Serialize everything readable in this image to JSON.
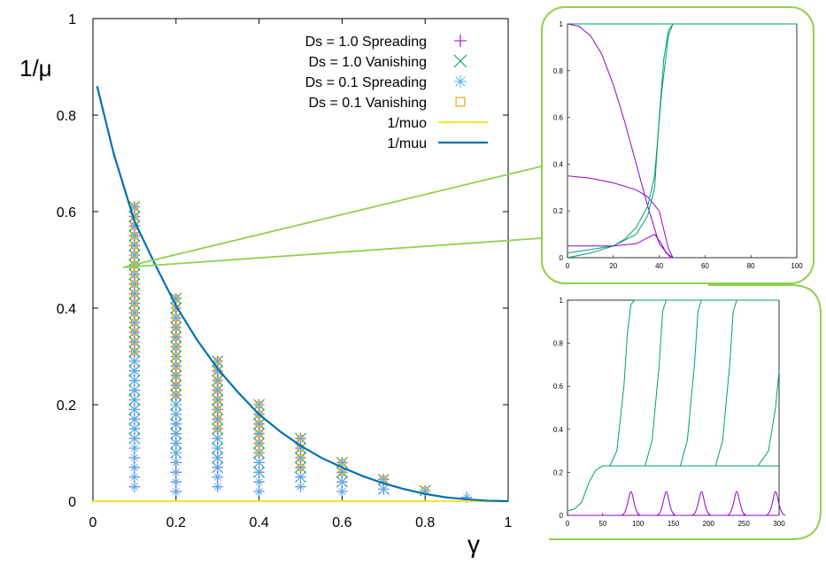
{
  "main": {
    "ylabel": "1/μ",
    "xlabel": "γ",
    "x_ticks": [
      "0",
      "0.2",
      "0.4",
      "0.6",
      "0.8",
      "1"
    ],
    "y_ticks": [
      "0",
      "0.2",
      "0.4",
      "0.6",
      "0.8",
      "1"
    ],
    "legend": [
      {
        "label": "Ds = 1.0 Spreading",
        "marker": "plus",
        "color": "#9400d3"
      },
      {
        "label": "Ds = 1.0 Vanishing",
        "marker": "cross",
        "color": "#009e73"
      },
      {
        "label": "Ds = 0.1 Spreading",
        "marker": "asterisk",
        "color": "#56b4e9"
      },
      {
        "label": "Ds = 0.1 Vanishing",
        "marker": "square",
        "color": "#e69f00"
      },
      {
        "label": "1/muo",
        "marker": "line",
        "color": "#f0e442"
      },
      {
        "label": "1/muu",
        "marker": "line",
        "color": "#0072b2"
      }
    ]
  },
  "inset_top": {
    "x_ticks": [
      "0",
      "20",
      "40",
      "60",
      "80",
      "100"
    ],
    "y_ticks": [
      "0",
      "0.2",
      "0.4",
      "0.6",
      "0.8",
      "1"
    ]
  },
  "inset_bottom": {
    "x_ticks": [
      "0",
      "50",
      "100",
      "150",
      "200",
      "250",
      "300"
    ],
    "y_ticks": [
      "0",
      "0.2",
      "0.4",
      "0.6",
      "0.8",
      "1"
    ]
  },
  "chart_data": [
    {
      "type": "scatter",
      "xlabel": "γ",
      "ylabel": "1/μ",
      "xlim": [
        0,
        1
      ],
      "ylim": [
        0,
        1
      ],
      "grid": false,
      "legend_position": "top-right",
      "sample_columns": {
        "gamma": [
          0.1,
          0.2,
          0.3,
          0.4,
          0.5,
          0.6,
          0.7,
          0.8,
          0.9
        ],
        "max_sampled": [
          0.61,
          0.42,
          0.29,
          0.2,
          0.13,
          0.08,
          0.045,
          0.022,
          0.008
        ],
        "min_sampled": [
          0.03,
          0.02,
          0.02,
          0.015,
          0.015,
          0.015,
          0.015,
          0.015,
          0.008
        ],
        "step": 0.02
      },
      "series": [
        {
          "name": "Ds = 1.0 Spreading",
          "marker": "plus",
          "color": "#9400d3"
        },
        {
          "name": "Ds = 1.0 Vanishing",
          "marker": "cross",
          "color": "#009e73"
        },
        {
          "name": "Ds = 0.1 Spreading",
          "marker": "asterisk",
          "color": "#56b4e9"
        },
        {
          "name": "Ds = 0.1 Vanishing",
          "marker": "square",
          "color": "#e69f00"
        },
        {
          "name": "1/muo",
          "type": "line",
          "color": "#f0e442",
          "x": [
            0,
            1
          ],
          "y": [
            0,
            0
          ]
        },
        {
          "name": "1/muu",
          "type": "line",
          "color": "#0072b2",
          "x": [
            0.01,
            0.05,
            0.1,
            0.15,
            0.2,
            0.25,
            0.3,
            0.35,
            0.4,
            0.45,
            0.5,
            0.55,
            0.6,
            0.65,
            0.7,
            0.75,
            0.8,
            0.85,
            0.9,
            0.95,
            1.0
          ],
          "y": [
            0.86,
            0.72,
            0.58,
            0.49,
            0.405,
            0.335,
            0.275,
            0.225,
            0.18,
            0.145,
            0.115,
            0.09,
            0.07,
            0.052,
            0.037,
            0.025,
            0.015,
            0.008,
            0.004,
            0.001,
            0.0
          ]
        }
      ]
    },
    {
      "type": "line",
      "xlim": [
        0,
        100
      ],
      "ylim": [
        0,
        1
      ],
      "series": [
        {
          "color": "#009e73",
          "x": [
            0,
            100
          ],
          "y": [
            1,
            1
          ]
        },
        {
          "color": "#9400d3",
          "x": [
            0,
            5,
            10,
            15,
            20,
            25,
            30,
            35,
            40,
            45
          ],
          "y": [
            1.0,
            0.99,
            0.95,
            0.87,
            0.74,
            0.58,
            0.4,
            0.22,
            0.06,
            0.0
          ]
        },
        {
          "color": "#9400d3",
          "x": [
            0,
            10,
            20,
            30,
            35,
            40,
            42,
            44,
            46
          ],
          "y": [
            0.35,
            0.34,
            0.32,
            0.29,
            0.26,
            0.2,
            0.12,
            0.04,
            0.0
          ]
        },
        {
          "color": "#009e73",
          "x": [
            0,
            20,
            30,
            35,
            38,
            40,
            42,
            44,
            46
          ],
          "y": [
            0.02,
            0.05,
            0.1,
            0.18,
            0.3,
            0.6,
            0.85,
            0.97,
            1.0
          ]
        },
        {
          "color": "#009e73",
          "x": [
            0,
            10,
            20,
            25,
            30,
            35,
            38,
            41,
            44,
            46
          ],
          "y": [
            0.0,
            0.02,
            0.05,
            0.08,
            0.13,
            0.22,
            0.35,
            0.7,
            0.95,
            1.0
          ]
        },
        {
          "color": "#9400d3",
          "x": [
            0,
            10,
            20,
            30,
            38,
            41,
            43,
            46
          ],
          "y": [
            0.05,
            0.05,
            0.05,
            0.06,
            0.1,
            0.06,
            0.02,
            0.0
          ]
        }
      ]
    },
    {
      "type": "line",
      "xlim": [
        0,
        300
      ],
      "ylim": [
        0,
        1
      ],
      "series": [
        {
          "color": "#009e73",
          "x": [
            0,
            10,
            20,
            30,
            40,
            50,
            300
          ],
          "y": [
            0.02,
            0.03,
            0.06,
            0.15,
            0.21,
            0.23,
            0.23
          ]
        },
        {
          "color": "#009e73",
          "x": [
            60,
            70,
            80,
            85,
            90,
            95,
            300
          ],
          "y": [
            0.23,
            0.3,
            0.6,
            0.85,
            0.98,
            1.0,
            1.0
          ]
        },
        {
          "color": "#009e73",
          "x": [
            110,
            120,
            130,
            135,
            140,
            300
          ],
          "y": [
            0.23,
            0.35,
            0.7,
            0.95,
            1.0,
            1.0
          ]
        },
        {
          "color": "#009e73",
          "x": [
            160,
            170,
            180,
            185,
            190,
            300
          ],
          "y": [
            0.23,
            0.35,
            0.7,
            0.95,
            1.0,
            1.0
          ]
        },
        {
          "color": "#009e73",
          "x": [
            210,
            220,
            230,
            235,
            240,
            300
          ],
          "y": [
            0.23,
            0.35,
            0.7,
            0.95,
            1.0,
            1.0
          ]
        },
        {
          "color": "#009e73",
          "x": [
            270,
            285,
            295,
            300
          ],
          "y": [
            0.23,
            0.3,
            0.5,
            0.67
          ]
        },
        {
          "color": "#9400d3",
          "peaks_x": [
            90,
            140,
            190,
            240,
            295
          ],
          "peak_y": 0.11
        }
      ]
    }
  ]
}
